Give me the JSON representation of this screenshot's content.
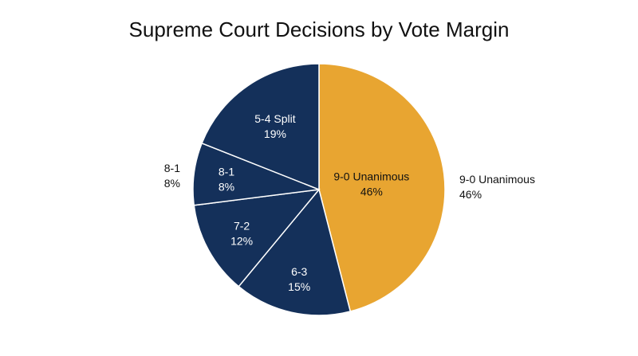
{
  "chart_data": {
    "type": "pie",
    "title": "Supreme Court Decisions by Vote Margin",
    "start_at": "12 o'clock",
    "direction": "clockwise",
    "slices": [
      {
        "label": "9-0 Unanimous",
        "value": 46,
        "display": "46%",
        "color": "#E8A531",
        "label_color": "#111111",
        "outside_label": "9-0 Unanimous",
        "outside_value": "46%"
      },
      {
        "label": "6-3",
        "value": 15,
        "display": "15%",
        "color": "#14305A",
        "label_color": "#ffffff"
      },
      {
        "label": "7-2",
        "value": 12,
        "display": "12%",
        "color": "#14305A",
        "label_color": "#ffffff"
      },
      {
        "label": "8-1",
        "value": 8,
        "display": "8%",
        "color": "#14305A",
        "label_color": "#ffffff",
        "outside_label": "8-1",
        "outside_value": "8%"
      },
      {
        "label": "5-4 Split",
        "value": 19,
        "display": "19%",
        "color": "#14305A",
        "label_color": "#ffffff"
      }
    ],
    "slice_border_color": "#ffffff"
  }
}
